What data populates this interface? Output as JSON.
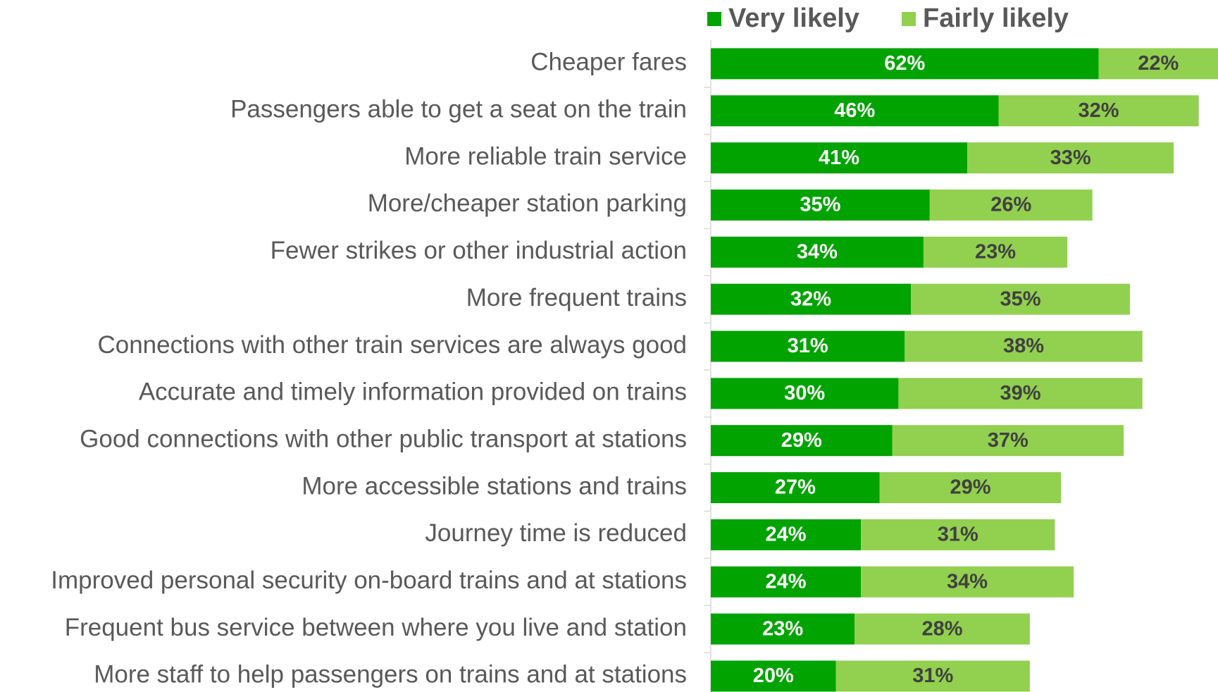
{
  "chart_data": {
    "type": "stacked_barh",
    "categories": [
      "Cheaper fares",
      "Passengers able to get a seat on the train",
      "More reliable train service",
      "More/cheaper station parking",
      "Fewer strikes or other industrial action",
      "More frequent trains",
      "Connections with other train services are always good",
      "Accurate and timely information provided on trains",
      "Good connections with other public transport at stations",
      "More accessible stations and trains",
      "Journey time is reduced",
      "Improved personal security on-board trains and at stations",
      "Frequent bus service between where you live and station",
      "More staff to help passengers on trains and at stations"
    ],
    "series": [
      {
        "name": "Very likely",
        "color": "#00a300",
        "label_color": "#ffffff",
        "values": [
          62,
          46,
          41,
          35,
          34,
          32,
          31,
          30,
          29,
          27,
          24,
          24,
          23,
          20
        ],
        "value_labels": [
          "62%",
          "46%",
          "41%",
          "35%",
          "34%",
          "32%",
          "31%",
          "30%",
          "29%",
          "27%",
          "24%",
          "24%",
          "23%",
          "20%"
        ]
      },
      {
        "name": "Fairly likely",
        "color": "#92d050",
        "label_color": "#404040",
        "values": [
          22,
          32,
          33,
          26,
          23,
          35,
          38,
          39,
          37,
          29,
          31,
          34,
          28,
          31
        ],
        "value_labels": [
          "22%",
          "32%",
          "33%",
          "26%",
          "23%",
          "35%",
          "38%",
          "39%",
          "37%",
          "29%",
          "31%",
          "34%",
          "28%",
          "31%"
        ]
      }
    ],
    "legend": "top"
  }
}
